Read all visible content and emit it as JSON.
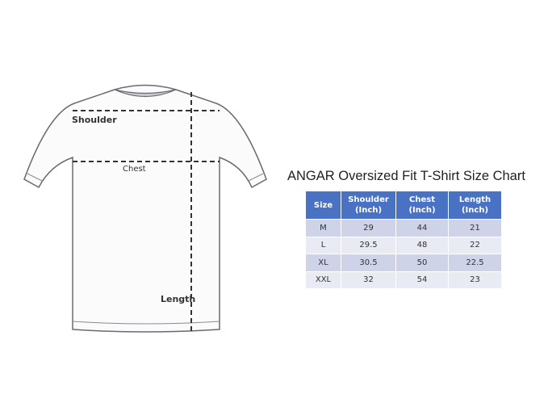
{
  "diagram": {
    "labels": {
      "shoulder": "Shoulder",
      "chest": "Chest",
      "length": "Length"
    }
  },
  "title": "ANGAR  Oversized  Fit  T-Shirt  Size  Chart",
  "table": {
    "headers": [
      [
        "Size",
        ""
      ],
      [
        "Shoulder",
        "(Inch)"
      ],
      [
        "Chest",
        "(Inch)"
      ],
      [
        "Length",
        "(Inch)"
      ]
    ],
    "rows": [
      [
        "M",
        "29",
        "44",
        "21"
      ],
      [
        "L",
        "29.5",
        "48",
        "22"
      ],
      [
        "XL",
        "30.5",
        "50",
        "22.5"
      ],
      [
        "XXL",
        "32",
        "54",
        "23"
      ]
    ],
    "header_color": "#4a72c4"
  }
}
